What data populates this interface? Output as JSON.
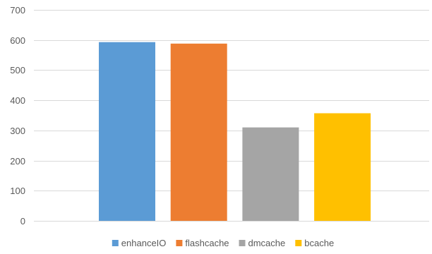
{
  "chart_data": {
    "type": "bar",
    "title": "",
    "xlabel": "",
    "ylabel": "",
    "ylim": [
      0,
      700
    ],
    "yticks": [
      0,
      100,
      200,
      300,
      400,
      500,
      600,
      700
    ],
    "grid": true,
    "legend_position": "bottom",
    "series": [
      {
        "name": "enhanceIO",
        "value": 593,
        "color": "#5b9bd5"
      },
      {
        "name": "flashcache",
        "value": 588,
        "color": "#ed7d31"
      },
      {
        "name": "dmcache",
        "value": 310,
        "color": "#a5a5a5"
      },
      {
        "name": "bcache",
        "value": 357,
        "color": "#ffc000"
      }
    ]
  }
}
